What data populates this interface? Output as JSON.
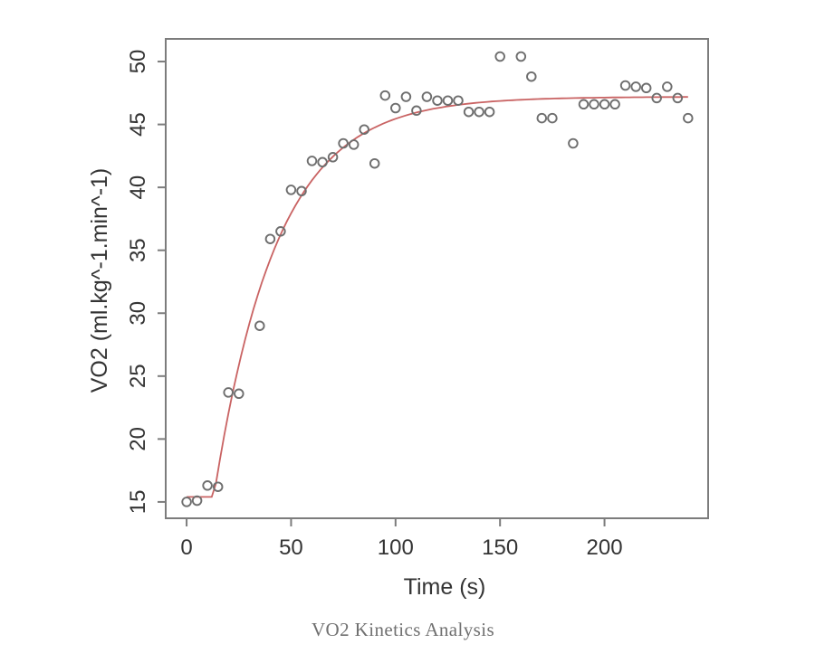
{
  "figure": {
    "caption": "VO2 Kinetics Analysis"
  },
  "chart_data": {
    "type": "scatter",
    "title": "",
    "xlabel": "Time (s)",
    "ylabel": "VO2 (ml.kg^-1.min^-1)",
    "x_ticks": [
      0,
      50,
      100,
      150,
      200
    ],
    "y_ticks": [
      15,
      20,
      25,
      30,
      35,
      40,
      45,
      50
    ],
    "xlim": [
      -10,
      249.6
    ],
    "ylim": [
      13.7,
      51.8
    ],
    "grid": false,
    "legend": "none",
    "series": [
      {
        "name": "measured-vo2",
        "type": "scatter",
        "marker": "open-circle",
        "color": "#6e6e6e",
        "x": [
          0,
          5,
          10,
          15,
          20,
          25,
          35,
          40,
          45,
          50,
          55,
          60,
          65,
          70,
          75,
          80,
          85,
          90,
          95,
          100,
          105,
          110,
          115,
          120,
          125,
          130,
          135,
          140,
          145,
          150,
          160,
          165,
          170,
          175,
          185,
          190,
          195,
          200,
          205,
          210,
          215,
          220,
          225,
          230,
          235,
          240
        ],
        "y": [
          15.0,
          15.1,
          16.3,
          16.2,
          23.7,
          23.6,
          29.0,
          35.9,
          36.5,
          39.8,
          39.7,
          42.1,
          42.0,
          42.4,
          43.5,
          43.4,
          44.6,
          41.9,
          47.3,
          46.3,
          47.2,
          46.1,
          47.2,
          46.9,
          46.9,
          46.9,
          46.0,
          46.0,
          46.0,
          50.4,
          50.4,
          48.8,
          45.5,
          45.5,
          43.5,
          46.6,
          46.6,
          46.6,
          46.6,
          48.1,
          48.0,
          47.9,
          47.1,
          48.0,
          47.1,
          45.5
        ]
      },
      {
        "name": "exponential-fit",
        "type": "line",
        "color": "#c96363",
        "model": {
          "form": "baseline + amplitude*(1-exp(-(t-time_delay)/tau)) for t > time_delay",
          "baseline": 15.4,
          "amplitude": 31.8,
          "time_delay": 13,
          "tau": 30,
          "t_range": [
            0,
            240
          ],
          "asymptote": 47.2
        }
      }
    ],
    "styles": {
      "axis_color": "#7c7c7c",
      "text_color": "#343434",
      "point_color": "#6e6e6e",
      "curve_color": "#c96363",
      "background": "#ffffff"
    }
  }
}
